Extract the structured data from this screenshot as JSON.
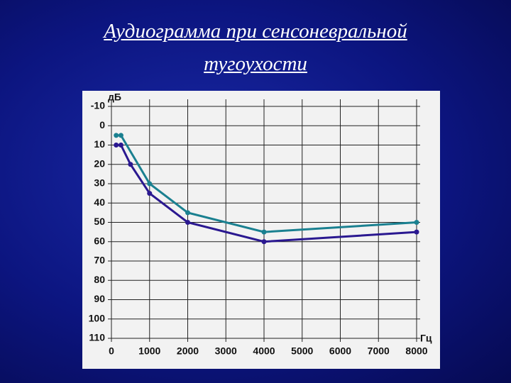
{
  "chart_data": {
    "type": "line",
    "title": [
      "Аудиограмма при сенсоневральной",
      "тугоухости"
    ],
    "ylabel": "дБ",
    "xlabel": "Гц",
    "xlim": [
      0,
      8000
    ],
    "xticks": [
      0,
      1000,
      2000,
      3000,
      4000,
      5000,
      6000,
      7000,
      8000
    ],
    "ylim": [
      -10,
      110
    ],
    "yticks": [
      -10,
      0,
      10,
      20,
      30,
      40,
      50,
      60,
      70,
      80,
      90,
      100,
      110
    ],
    "y_inverted": true,
    "grid": true,
    "series": [
      {
        "color": "#1a8090",
        "x": [
          125,
          250,
          1000,
          2000,
          4000,
          8000
        ],
        "values": [
          5,
          5,
          30,
          45,
          55,
          50
        ]
      },
      {
        "color": "#2a1890",
        "x": [
          125,
          250,
          500,
          1000,
          2000,
          4000,
          8000
        ],
        "values": [
          10,
          10,
          20,
          35,
          50,
          60,
          55
        ]
      }
    ]
  }
}
